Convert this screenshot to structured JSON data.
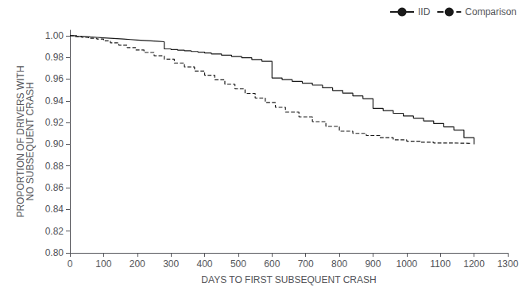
{
  "chart_data": {
    "type": "step",
    "title": "",
    "xlabel": "DAYS TO FIRST SUBSEQUENT CRASH",
    "ylabel": "PROPORTION OF DRIVERS WITH\nNO SUBSEQUENT CRASH",
    "xlim": [
      0,
      1300
    ],
    "ylim": [
      0.8,
      1.005
    ],
    "xticks": [
      0,
      100,
      200,
      300,
      400,
      500,
      600,
      700,
      800,
      900,
      1000,
      1100,
      1200,
      1300
    ],
    "yticks": [
      {
        "value": 0.8,
        "label": "0.80"
      },
      {
        "value": 0.82,
        "label": "0.82"
      },
      {
        "value": 0.84,
        "label": "0.84"
      },
      {
        "value": 0.86,
        "label": "0.86"
      },
      {
        "value": 0.88,
        "label": "0.88"
      },
      {
        "value": 0.9,
        "label": "0.90"
      },
      {
        "value": 0.92,
        "label": "0.92"
      },
      {
        "value": 0.94,
        "label": "0.94"
      },
      {
        "value": 0.96,
        "label": "0.96"
      },
      {
        "value": 0.98,
        "label": "0.98"
      },
      {
        "value": 1.0,
        "label": "1.00"
      }
    ],
    "grid": false,
    "legend": "upper right",
    "series": [
      {
        "name": "IID",
        "color": "#1a1a1a",
        "line_style": "solid",
        "x": [
          0,
          20,
          40,
          60,
          80,
          100,
          120,
          140,
          160,
          180,
          200,
          220,
          240,
          260,
          280,
          300,
          320,
          340,
          360,
          380,
          400,
          420,
          450,
          480,
          510,
          540,
          570,
          600,
          630,
          660,
          690,
          720,
          750,
          780,
          810,
          840,
          870,
          900,
          930,
          960,
          990,
          1020,
          1050,
          1080,
          1110,
          1140,
          1170,
          1200
        ],
        "values": [
          1.0,
          0.9993,
          0.9988,
          0.9984,
          0.998,
          0.9976,
          0.9972,
          0.9968,
          0.9964,
          0.996,
          0.9956,
          0.9952,
          0.9948,
          0.9944,
          0.9878,
          0.9872,
          0.9866,
          0.986,
          0.9854,
          0.9848,
          0.984,
          0.9832,
          0.982,
          0.9808,
          0.9796,
          0.978,
          0.9764,
          0.961,
          0.9595,
          0.9578,
          0.9562,
          0.9545,
          0.952,
          0.9495,
          0.947,
          0.9445,
          0.942,
          0.933,
          0.931,
          0.9285,
          0.926,
          0.924,
          0.9215,
          0.919,
          0.916,
          0.913,
          0.906,
          0.9
        ]
      },
      {
        "name": "Comparison",
        "color": "#1a1a1a",
        "line_style": "dashed",
        "x": [
          0,
          15,
          35,
          55,
          80,
          100,
          120,
          145,
          170,
          195,
          220,
          250,
          280,
          310,
          340,
          370,
          400,
          430,
          460,
          490,
          520,
          550,
          580,
          610,
          640,
          680,
          720,
          760,
          800,
          840,
          880,
          920,
          960,
          1000,
          1040,
          1080,
          1120,
          1160,
          1190
        ],
        "values": [
          1.0,
          0.9992,
          0.9984,
          0.9976,
          0.9968,
          0.9952,
          0.9934,
          0.9912,
          0.989,
          0.9868,
          0.9845,
          0.9815,
          0.9783,
          0.9748,
          0.9712,
          0.9674,
          0.9635,
          0.9594,
          0.9552,
          0.951,
          0.9468,
          0.9426,
          0.9384,
          0.934,
          0.9296,
          0.9252,
          0.9208,
          0.9164,
          0.912,
          0.91,
          0.908,
          0.906,
          0.904,
          0.9028,
          0.9018,
          0.9012,
          0.901,
          0.9008,
          0.9005
        ]
      }
    ]
  }
}
